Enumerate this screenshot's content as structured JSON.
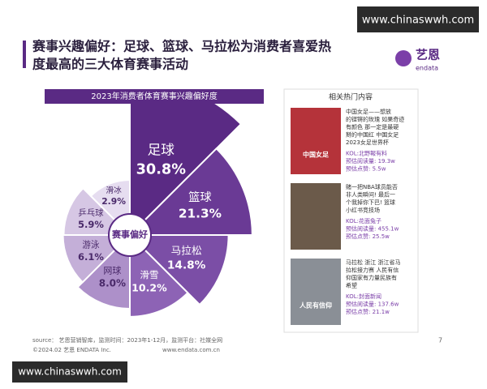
{
  "chart_data": {
    "type": "rose",
    "title": "2023年消费者体育赛事兴趣偏好度",
    "center_label": "赛事偏好",
    "categories": [
      "足球",
      "篮球",
      "马拉松",
      "滑雪",
      "网球",
      "游泳",
      "乒乓球",
      "滑冰"
    ],
    "values": [
      30.8,
      21.3,
      14.8,
      10.2,
      8.0,
      6.1,
      5.9,
      2.9
    ],
    "value_labels": [
      "30.8%",
      "21.3%",
      "14.8%",
      "10.2%",
      "8.0%",
      "6.1%",
      "5.9%",
      "2.9%"
    ],
    "colors": [
      "#5a2a84",
      "#6a3a95",
      "#7b4ea6",
      "#8d63b5",
      "#ad90c9",
      "#c4afd8",
      "#d6c7e4",
      "#e6ddf0"
    ]
  },
  "slide": {
    "watermark_top": "www.chinaswwh.com",
    "watermark_bottom": "www.chinaswwh.com",
    "title_lines": [
      "赛事兴趣偏好：足球、篮球、马拉松为消费者喜爱热",
      "度最高的三大体育赛事活动"
    ],
    "logo": "艺恩",
    "logo_sub": "endata",
    "side_title": "相关热门内容",
    "items": [
      {
        "image_text": "中国女足",
        "lines": [
          "中国女足——想放",
          "的铿锵的玫瑰 如果奇迹",
          "有颜色 那一定是最硬",
          "掰的中国红 中国女足",
          "2023女足世界杯"
        ],
        "kol": "KOL:北野報有料",
        "reads": "预估阅读量: 19.3w",
        "likes": "预估点赞: 5.5w"
      },
      {
        "image_text": "",
        "lines": [
          "赌一把NBA球员能否",
          "非人类瞬间! 最后一",
          "个我掉你下巴! 篮球",
          "小红书竞技场"
        ],
        "kol": "KOL:花面兔子",
        "reads": "预估阅读量: 455.1w",
        "likes": "预估点赞: 25.5w"
      },
      {
        "image_text": "人民有信仰",
        "lines": [
          "马拉松 浙江 浙江省马",
          "拉松接力赛 人民有信",
          "仰国家有力量民族有",
          "希望"
        ],
        "kol": "KOL:封面新闻",
        "reads": "预估阅读量: 137.6w",
        "likes": "预估点赞: 21.1w"
      }
    ],
    "source": "source： 艺恩营销智库，监测时间：2023年1-12月，监测平台：社媒全网",
    "copyright": "©2024.02 艺恩 ENDATA Inc.",
    "website": "www.endata.com.cn",
    "page_number": "7"
  }
}
